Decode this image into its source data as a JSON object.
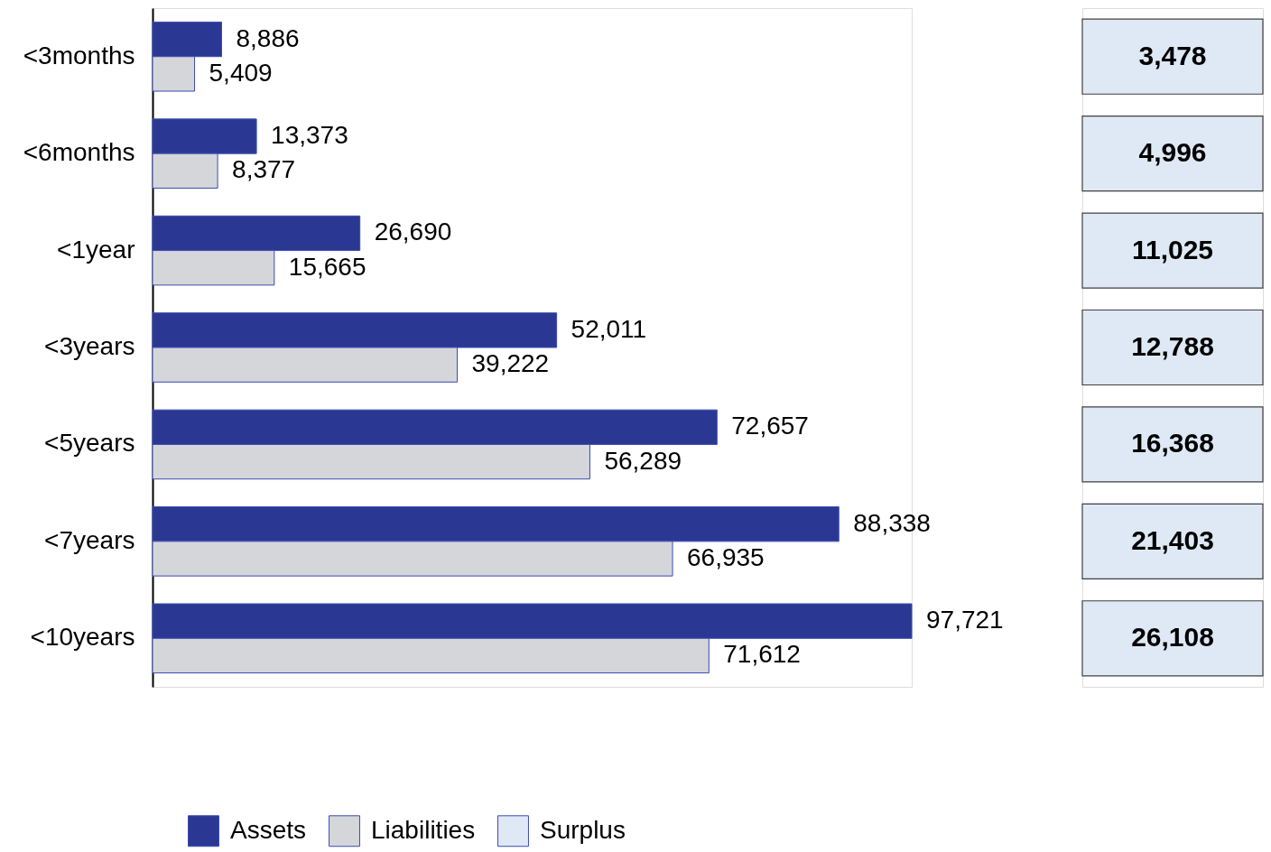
{
  "chart_data": [
    {
      "type": "bar",
      "orientation": "horizontal",
      "categories": [
        "<3months",
        "<6months",
        "<1year",
        "<3years",
        "<5years",
        "<7years",
        "<10years"
      ],
      "series": [
        {
          "name": "Assets",
          "color": "#2a3894",
          "values": [
            8886,
            13373,
            26690,
            52011,
            72657,
            88338,
            97721
          ],
          "value_labels": [
            "8,886",
            "13,373",
            "26,690",
            "52,011",
            "72,657",
            "88,338",
            "97,721"
          ]
        },
        {
          "name": "Liabilities",
          "color": "#d5d6da",
          "values": [
            5409,
            8377,
            15665,
            39222,
            56289,
            66935,
            71612
          ],
          "value_labels": [
            "5,409",
            "8,377",
            "15,665",
            "39,222",
            "56,289",
            "66,935",
            "71,612"
          ]
        }
      ],
      "legend": "bottom",
      "tick_labels": "y"
    },
    {
      "type": "other",
      "series": [
        {
          "name": "Surplus",
          "color": "#dee9f5",
          "values": [
            3478,
            4996,
            11025,
            12788,
            16368,
            21403,
            26108
          ],
          "value_labels": [
            "3,478",
            "4,996",
            "11,025",
            "12,788",
            "16,368",
            "21,403",
            "26,108"
          ]
        }
      ]
    }
  ]
}
